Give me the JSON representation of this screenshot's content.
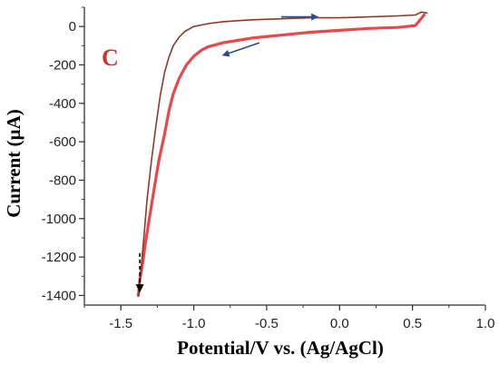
{
  "chart_data": {
    "type": "line",
    "title": "",
    "panel_label": "C",
    "xlabel": "Potential/V vs. (Ag/AgCl)",
    "ylabel": "Current (µA)",
    "xlim": [
      -1.75,
      1.0
    ],
    "ylim": [
      -1450,
      100
    ],
    "x_ticks": [
      -1.5,
      -1.0,
      -0.5,
      0.0,
      0.5,
      1.0
    ],
    "x_tick_labels": [
      "-1.5",
      "-1.0",
      "-0.5",
      "0.0",
      "0.5",
      "1.0"
    ],
    "y_ticks": [
      0,
      -200,
      -400,
      -600,
      -800,
      -1000,
      -1200,
      -1400
    ],
    "y_tick_labels": [
      "0",
      "-200",
      "-400",
      "-600",
      "-800",
      "-1000",
      "-1200",
      "-1400"
    ],
    "grid": false,
    "legend": "none",
    "series": [
      {
        "color": "#e8474c",
        "x": [
          -1.38,
          -1.37,
          -1.35,
          -1.33,
          -1.3,
          -1.27,
          -1.24,
          -1.2,
          -1.17,
          -1.14,
          -1.1,
          -1.05,
          -1.0,
          -0.95,
          -0.9,
          -0.85,
          -0.8,
          -0.6,
          -0.4,
          -0.2,
          0.0,
          0.2,
          0.4,
          0.52,
          0.58
        ],
        "y": [
          -1400,
          -1320,
          -1230,
          -1120,
          -980,
          -840,
          -700,
          -560,
          -440,
          -350,
          -270,
          -200,
          -155,
          -125,
          -105,
          -95,
          -85,
          -60,
          -45,
          -30,
          -20,
          -10,
          -5,
          5,
          60
        ]
      },
      {
        "color": "#8b3a2a",
        "x": [
          -1.38,
          -1.36,
          -1.34,
          -1.32,
          -1.29,
          -1.26,
          -1.23,
          -1.2,
          -1.17,
          -1.14,
          -1.1,
          -1.06,
          -1.0,
          -0.9,
          -0.8,
          -0.6,
          -0.4,
          -0.2,
          0.0,
          0.2,
          0.4,
          0.52,
          0.56,
          0.6
        ],
        "y": [
          -1400,
          -1250,
          -1080,
          -900,
          -700,
          -520,
          -360,
          -240,
          -160,
          -100,
          -55,
          -25,
          0,
          15,
          25,
          35,
          40,
          45,
          45,
          50,
          55,
          60,
          75,
          70
        ]
      }
    ],
    "annotations": [
      {
        "type": "arrow",
        "direction": "right",
        "color": "#2b4a8c",
        "from": [
          -0.4,
          50
        ],
        "to": [
          -0.15,
          50
        ]
      },
      {
        "type": "arrow",
        "direction": "left",
        "color": "#2b4a8c",
        "from": [
          -0.55,
          -85
        ],
        "to": [
          -0.8,
          -150
        ]
      },
      {
        "type": "arrow",
        "direction": "down",
        "color": "#000000",
        "dashed": true,
        "from": [
          -1.37,
          -1180
        ],
        "to": [
          -1.37,
          -1380
        ]
      }
    ],
    "colors": {
      "axis": "#333333",
      "panel_label": "#c0392b"
    }
  }
}
